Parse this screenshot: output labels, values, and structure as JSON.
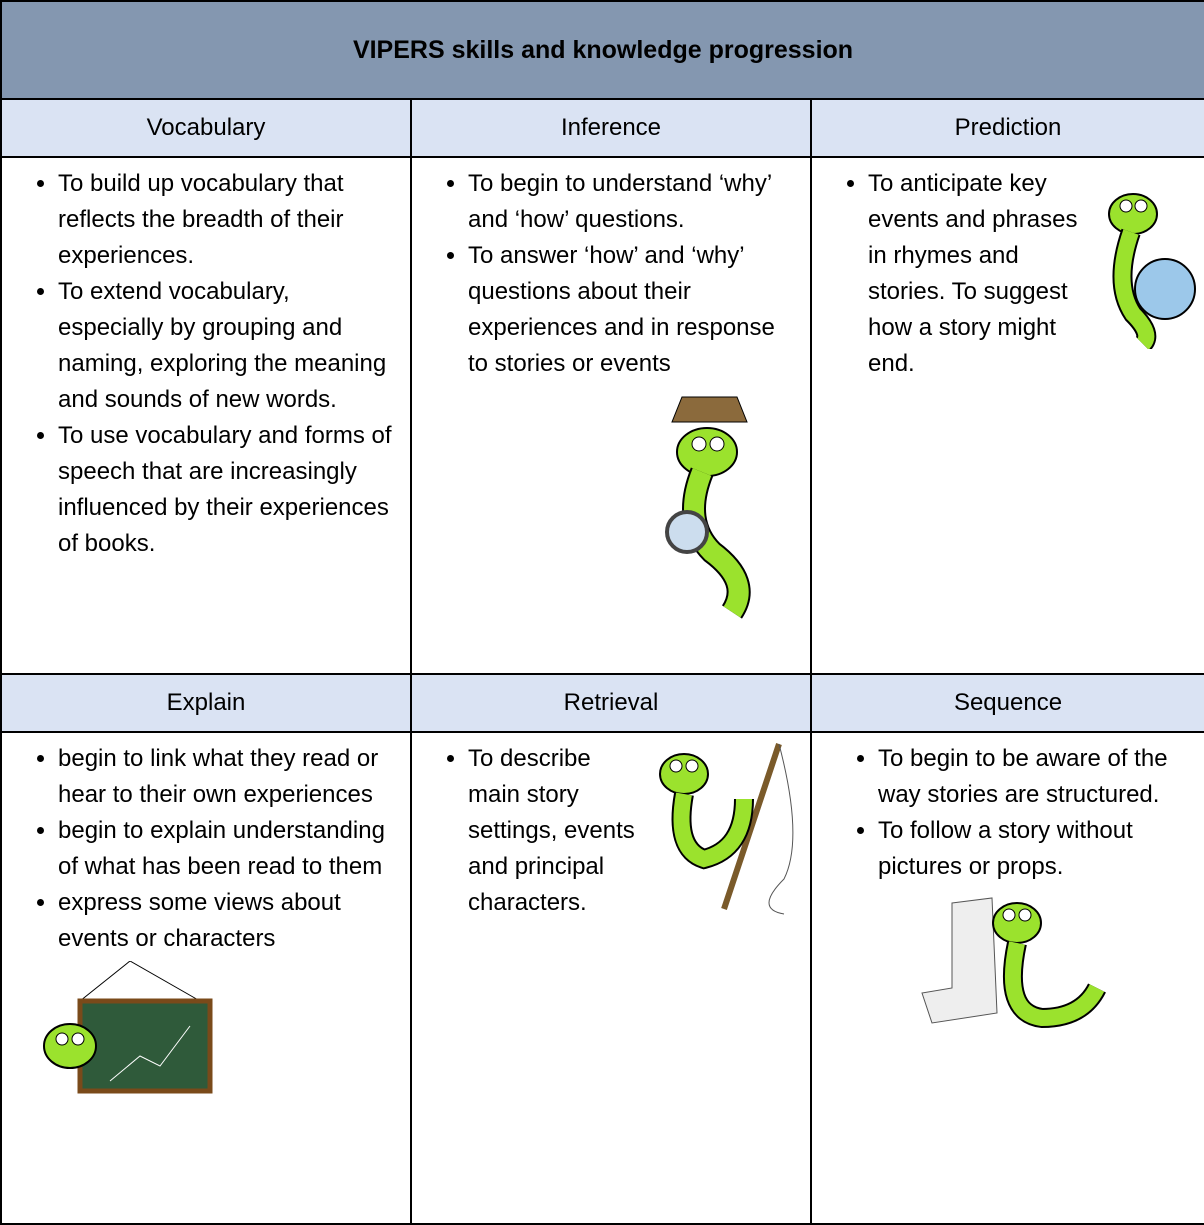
{
  "title": "VIPERS skills and knowledge progression",
  "cells": [
    {
      "heading": "Vocabulary",
      "bullets": [
        "To build up vocabulary that reflects the breadth of their experiences.",
        "To extend vocabulary, especially by grouping and naming, exploring the meaning and sounds of new words.",
        "To use vocabulary and forms of speech that are increasingly influenced by their experiences of books."
      ]
    },
    {
      "heading": "Inference",
      "bullets": [
        "To begin to understand ‘why’ and ‘how’ questions.",
        "To answer ‘how’ and ‘why’ questions about their experiences and in response to stories or events"
      ]
    },
    {
      "heading": "Prediction",
      "bullets": [
        "To anticipate key events and phrases in rhymes and stories. To suggest how a story might end."
      ]
    },
    {
      "heading": "Explain",
      "bullets": [
        "begin to link what they read or hear to their own experiences",
        "begin to explain understanding of what has been read to them",
        "express some views about events or characters"
      ]
    },
    {
      "heading": "Retrieval",
      "bullets": [
        "To describe main story settings, events and principal characters."
      ]
    },
    {
      "heading": "Sequence",
      "bullets": [
        "To begin to be aware of the way stories are structured.",
        "To follow a story without pictures or props."
      ]
    }
  ]
}
